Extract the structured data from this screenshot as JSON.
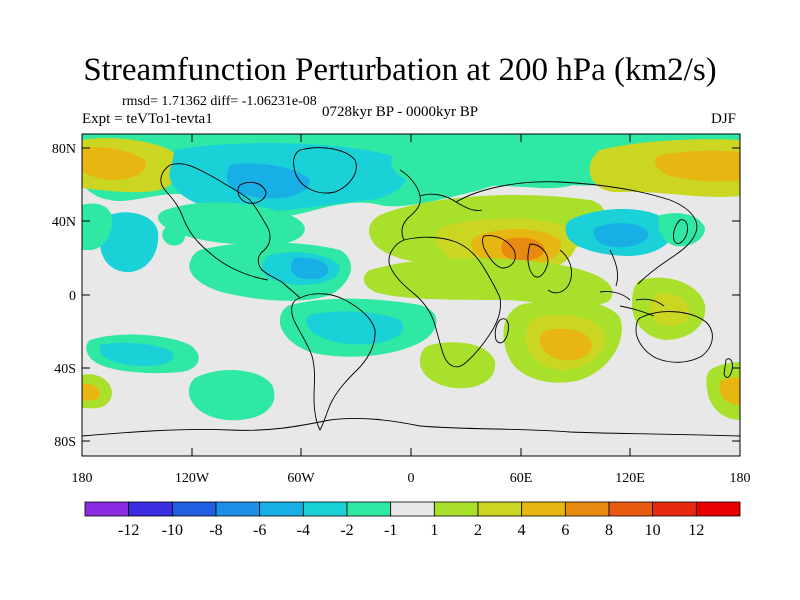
{
  "title": "Streamfunction Perturbation at 200 hPa (km2/s)",
  "stats_line": "rmsd= 1.71362 diff= -1.06231e-08",
  "experiment": "Expt = teVTo1-tevta1",
  "period": "0728kyr BP - 0000kyr BP",
  "season": "DJF",
  "lat_ticks": [
    "80N",
    "40N",
    "0",
    "40S",
    "80S"
  ],
  "lon_ticks": [
    "180",
    "120W",
    "60W",
    "0",
    "60E",
    "120E",
    "180"
  ],
  "colorbar": {
    "labels": [
      "-12",
      "-10",
      "-8",
      "-6",
      "-4",
      "-2",
      "-1",
      "1",
      "2",
      "4",
      "6",
      "8",
      "10",
      "12"
    ],
    "colors": [
      "#8a2be2",
      "#3a2ee0",
      "#1f5fe0",
      "#1d8fe8",
      "#18aee6",
      "#1ad1d8",
      "#2ee8a4",
      "#e8e8e8",
      "#a8e02c",
      "#cbd622",
      "#e8b610",
      "#e88a10",
      "#e85a10",
      "#e82810",
      "#e80000"
    ]
  },
  "colors": {
    "land_outline": "#000000",
    "background": "#e8e8e8"
  }
}
